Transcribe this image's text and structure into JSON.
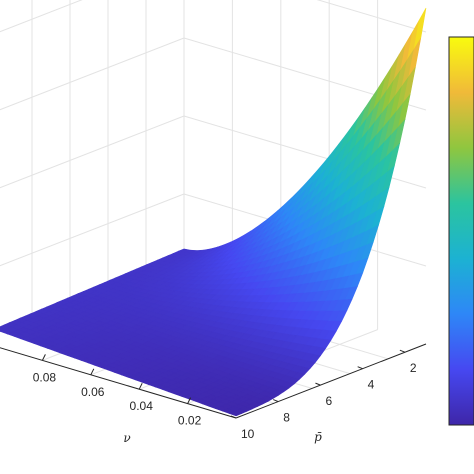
{
  "chart_data": {
    "type": "surface",
    "title": "",
    "xlabel": "ν",
    "ylabel": "p̄",
    "zlabel": "",
    "x_ticks": [
      "0.08",
      "0.06",
      "0.04",
      "0.02"
    ],
    "y_ticks": [
      "10",
      "8",
      "6",
      "4",
      "2"
    ],
    "xlim": [
      0,
      0.1
    ],
    "ylim": [
      1,
      10
    ],
    "grid": true,
    "colormap": "parula",
    "colorbar": true,
    "colormap_stops": [
      "#3e26a8",
      "#4648f1",
      "#2e87f7",
      "#1cb2d2",
      "#2bc49f",
      "#8fc63f",
      "#f0ba39",
      "#f9fb0e"
    ],
    "grid_color": "#e3e3e3",
    "axis_color": "#262626"
  }
}
